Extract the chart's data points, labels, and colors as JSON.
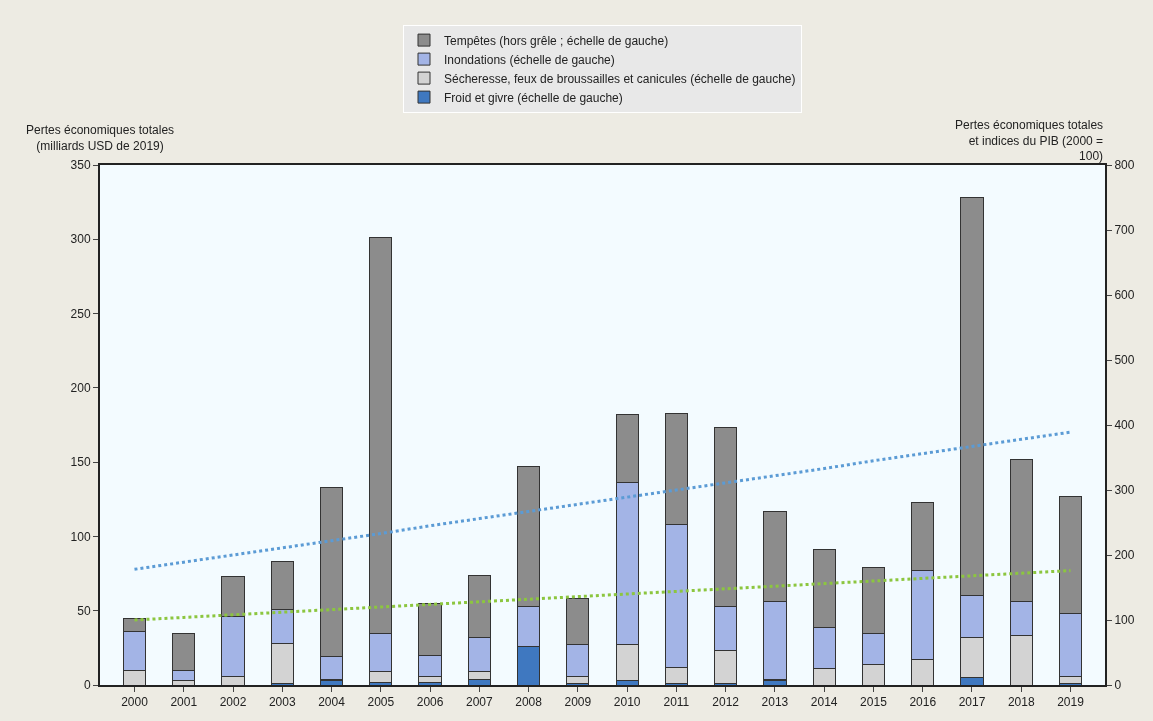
{
  "chart_data": {
    "type": "bar",
    "stacked": true,
    "legend": "top",
    "ylabel": "Pertes économiques totales\n(milliards USD de 2019)",
    "y2label": "Pertes économiques totales\net indices du PIB (2000 =\n100)",
    "categories": [
      "2000",
      "2001",
      "2002",
      "2003",
      "2004",
      "2005",
      "2006",
      "2007",
      "2008",
      "2009",
      "2010",
      "2011",
      "2012",
      "2013",
      "2014",
      "2015",
      "2016",
      "2017",
      "2018",
      "2019"
    ],
    "ylim": [
      0,
      350
    ],
    "yticks": [
      0,
      50,
      100,
      150,
      200,
      250,
      300,
      350
    ],
    "y2lim": [
      0,
      800
    ],
    "y2ticks": [
      0,
      100,
      200,
      300,
      400,
      500,
      600,
      700,
      800
    ],
    "series": [
      {
        "name": "Froid et givre (échelle de gauche)",
        "color": "#3f78c0",
        "values": [
          0,
          0,
          0,
          1,
          3,
          2,
          2,
          4,
          26,
          1,
          3,
          1,
          1,
          3,
          0,
          0,
          0,
          5,
          0,
          1
        ]
      },
      {
        "name": "Sécheresse, feux de broussailles et canicules (échelle de gauche)",
        "color": "#d3d3d3",
        "values": [
          10,
          3,
          6,
          27,
          1,
          7,
          4,
          5,
          0,
          5,
          24,
          11,
          22,
          1,
          11,
          14,
          17,
          27,
          33,
          5
        ]
      },
      {
        "name": "Inondations (échelle de gauche)",
        "color": "#a3b4e6",
        "values": [
          26,
          7,
          40,
          23,
          15,
          26,
          14,
          23,
          27,
          21,
          109,
          96,
          30,
          52,
          28,
          21,
          60,
          28,
          23,
          42
        ]
      },
      {
        "name": "Tempêtes (hors grêle ; échelle de gauche)",
        "color": "#8c8c8c",
        "values": [
          9,
          25,
          27,
          32,
          114,
          266,
          35,
          42,
          94,
          31,
          46,
          75,
          120,
          61,
          52,
          44,
          46,
          268,
          96,
          79
        ]
      },
      {
        "type": "line",
        "axis": "y2",
        "line_style": "dotted",
        "color": "#5b9bd5",
        "values": [
          178,
          189,
          200,
          211,
          222,
          233,
          245,
          256,
          267,
          278,
          289,
          300,
          311,
          322,
          333,
          345,
          356,
          367,
          378,
          389
        ]
      },
      {
        "type": "line",
        "axis": "y2",
        "line_style": "dotted",
        "color": "#8cc63f",
        "values": [
          100,
          104,
          108,
          112,
          116,
          120,
          124,
          128,
          132,
          136,
          140,
          144,
          148,
          152,
          156,
          160,
          164,
          168,
          172,
          176
        ]
      }
    ]
  }
}
